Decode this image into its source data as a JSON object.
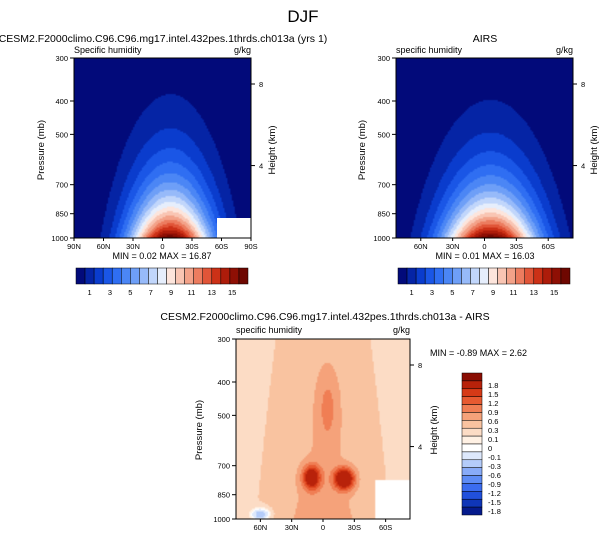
{
  "figure": {
    "title": "DJF"
  },
  "palettes": {
    "full": [
      "#020a7a",
      "#0524a5",
      "#0a3ccd",
      "#1a56e6",
      "#2f6ef2",
      "#4b86f5",
      "#6e9ff7",
      "#97baf9",
      "#c1d6fb",
      "#e6eefc",
      "#fde5dc",
      "#f9c5b3",
      "#f3a289",
      "#ec7c5f",
      "#e15538",
      "#cc3117",
      "#ad1c0a",
      "#8e0f04",
      "#6e0701"
    ],
    "diff": [
      "#051a8c",
      "#0f36b8",
      "#2150dc",
      "#3b6cef",
      "#5e8cf5",
      "#88abf8",
      "#b4ccfa",
      "#dde8fc",
      "#ffffff",
      "#fff1e4",
      "#fcdcc5",
      "#f9c3a0",
      "#f5a27a",
      "#f07e54",
      "#e75a31",
      "#d63a17",
      "#b8220a",
      "#8a0d03"
    ]
  },
  "chart_data": [
    {
      "type": "contour",
      "panel": "model",
      "title": "CESM2.F2000climo.C96.C96.mg17.intel.432pes.1thrds.ch013a (yrs 1)",
      "left_label": "Specific humidity",
      "right_label": "g/kg",
      "ylabel": "Pressure (mb)",
      "ylabel_right": "Height (km)",
      "xtick_labels": [
        "90N",
        "60N",
        "30N",
        "0",
        "30S",
        "60S",
        "90S"
      ],
      "x_range": [
        -90,
        90
      ],
      "ytick_labels": [
        "300",
        "400",
        "500",
        "700",
        "850",
        "1000"
      ],
      "y_ticks": [
        300,
        400,
        500,
        700,
        850,
        1000
      ],
      "y_range": [
        300,
        1000
      ],
      "right_ticks": [
        {
          "label": "8",
          "p": 357
        },
        {
          "label": "4",
          "p": 616
        }
      ],
      "field": {
        "max": 16.87,
        "width": 42,
        "center": 8,
        "decay": 2.3,
        "lift": 120
      },
      "stats": "MIN =  0.02  MAX = 16.87",
      "colorbar": {
        "levels": [
          1,
          2,
          3,
          4,
          5,
          6,
          7,
          8,
          9,
          10,
          11,
          12,
          13,
          14,
          15,
          16
        ],
        "labels": [
          "1",
          "3",
          "5",
          "7",
          "9",
          "11",
          "13",
          "15"
        ]
      }
    },
    {
      "type": "contour",
      "panel": "obs",
      "title": "AIRS",
      "left_label": "specific humidity",
      "right_label": "g/kg",
      "ylabel": "Pressure (mb)",
      "ylabel_right": "Height (km)",
      "xtick_labels": [
        "60N",
        "30N",
        "0",
        "30S",
        "60S"
      ],
      "x_range": [
        -75,
        75
      ],
      "ytick_labels": [
        "300",
        "400",
        "500",
        "700",
        "850",
        "1000"
      ],
      "y_ticks": [
        300,
        400,
        500,
        700,
        850,
        1000
      ],
      "y_range": [
        300,
        1000
      ],
      "right_ticks": [
        {
          "label": "8",
          "p": 357
        },
        {
          "label": "4",
          "p": 616
        }
      ],
      "field": {
        "max": 16.03,
        "width": 40,
        "center": 5,
        "decay": 2.4,
        "lift": 130
      },
      "stats": "MIN =  0.01  MAX = 16.03",
      "colorbar": {
        "levels": [
          1,
          2,
          3,
          4,
          5,
          6,
          7,
          8,
          9,
          10,
          11,
          12,
          13,
          14,
          15,
          16
        ],
        "labels": [
          "1",
          "3",
          "5",
          "7",
          "9",
          "11",
          "13",
          "15"
        ]
      }
    },
    {
      "type": "contour",
      "panel": "difference",
      "title": "CESM2.F2000climo.C96.C96.mg17.intel.432pes.1thrds.ch013a - AIRS",
      "left_label": "specific humidity",
      "right_label": "g/kg",
      "ylabel": "Pressure (mb)",
      "ylabel_right": "Height (km)",
      "xtick_labels": [
        "60N",
        "30N",
        "0",
        "30S",
        "60S"
      ],
      "x_range": [
        -90,
        90
      ],
      "ytick_labels": [
        "300",
        "400",
        "500",
        "700",
        "850",
        "1000"
      ],
      "y_ticks": [
        300,
        400,
        500,
        700,
        850,
        1000
      ],
      "y_range": [
        300,
        1000
      ],
      "right_ticks": [
        {
          "label": "8",
          "p": 357
        },
        {
          "label": "4",
          "p": 616
        }
      ],
      "stats": "MIN = -0.89  MAX =  2.62",
      "colorbar": {
        "levels": [
          -1.8,
          -1.5,
          -1.2,
          -0.9,
          -0.6,
          -0.3,
          -0.1,
          0,
          0.1,
          0.3,
          0.6,
          0.9,
          1.2,
          1.5,
          1.8
        ],
        "labels": [
          "1.8",
          "1.5",
          "1.2",
          "0.9",
          "0.6",
          "0.3",
          "0.1",
          "0",
          "-0.1",
          "-0.3",
          "-0.6",
          "-0.9",
          "-1.2",
          "-1.5",
          "-1.8"
        ]
      }
    }
  ]
}
